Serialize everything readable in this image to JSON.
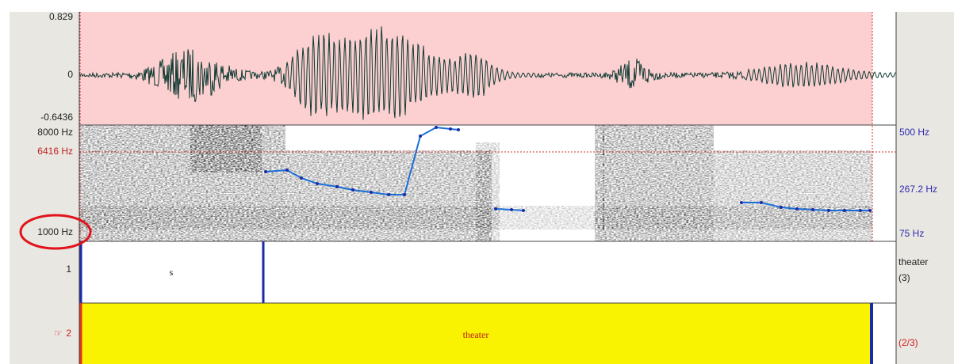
{
  "waveform": {
    "max_label": "0.829",
    "zero_label": "0",
    "min_label": "-0.6436"
  },
  "spectrogram": {
    "top_label": "8000 Hz",
    "cursor_label": "6416 Hz",
    "bottom_label": "1000 Hz"
  },
  "pitch": {
    "top_label": "500 Hz",
    "mid_label": "267.2 Hz",
    "bottom_label": "75 Hz"
  },
  "tiers": [
    {
      "number": "1",
      "interval_text": "s",
      "tier_name": "theater",
      "count": "(3)"
    },
    {
      "number": "2",
      "interval_text": "theater",
      "count": "(2/3)"
    }
  ]
}
